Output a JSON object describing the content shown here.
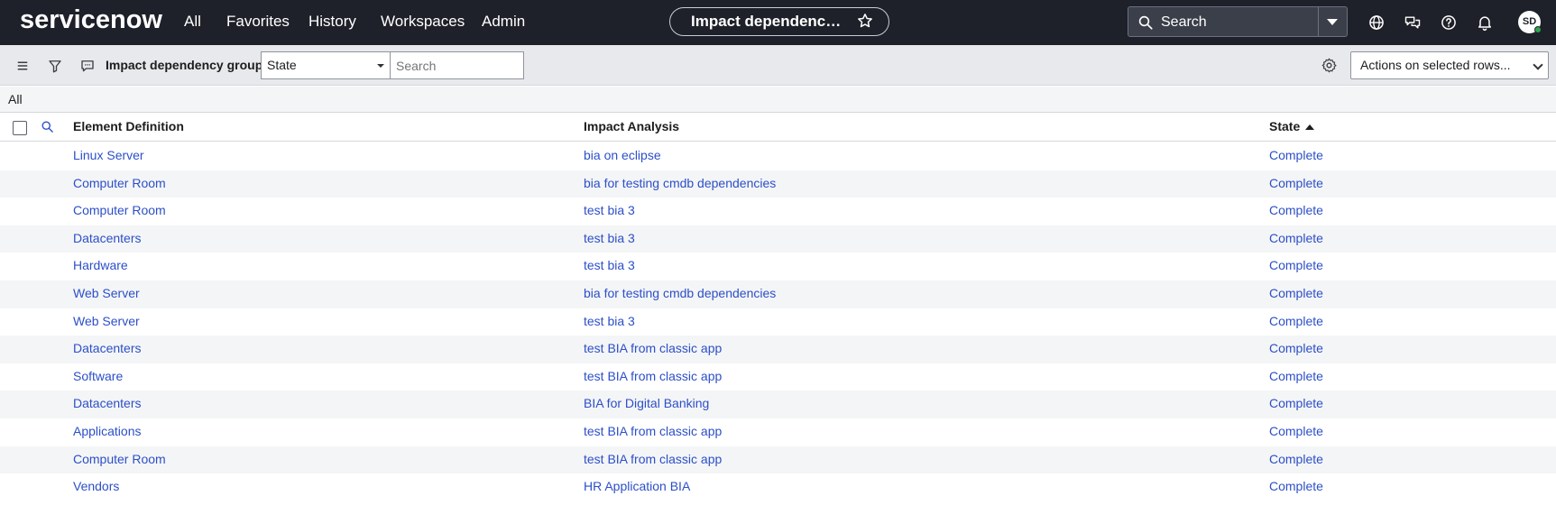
{
  "header": {
    "logo": "servicenow",
    "nav": [
      "All",
      "Favorites",
      "History",
      "Workspaces",
      "Admin"
    ],
    "context_title": "Impact dependency groups",
    "search_label": "Search",
    "avatar_initials": "SD"
  },
  "toolbar": {
    "title": "Impact dependency groups",
    "filter_field": "State",
    "search_placeholder": "Search",
    "actions_label": "Actions on selected rows..."
  },
  "breadcrumb": "All",
  "table": {
    "columns": [
      "Element Definition",
      "Impact Analysis",
      "State"
    ],
    "sort_column": "State",
    "rows": [
      {
        "element": "Linux Server",
        "analysis": "bia on eclipse",
        "state": "Complete"
      },
      {
        "element": "Computer Room",
        "analysis": "bia for testing cmdb dependencies",
        "state": "Complete"
      },
      {
        "element": "Computer Room",
        "analysis": "test bia 3",
        "state": "Complete"
      },
      {
        "element": "Datacenters",
        "analysis": "test bia 3",
        "state": "Complete"
      },
      {
        "element": "Hardware",
        "analysis": "test bia 3",
        "state": "Complete"
      },
      {
        "element": "Web Server",
        "analysis": "bia for testing cmdb dependencies",
        "state": "Complete"
      },
      {
        "element": "Web Server",
        "analysis": "test bia 3",
        "state": "Complete"
      },
      {
        "element": "Datacenters",
        "analysis": "test BIA from classic app",
        "state": "Complete"
      },
      {
        "element": "Software",
        "analysis": "test BIA from classic app",
        "state": "Complete"
      },
      {
        "element": "Datacenters",
        "analysis": "BIA for Digital Banking",
        "state": "Complete"
      },
      {
        "element": "Applications",
        "analysis": "test BIA from classic app",
        "state": "Complete"
      },
      {
        "element": "Computer Room",
        "analysis": "test BIA from classic app",
        "state": "Complete"
      },
      {
        "element": "Vendors",
        "analysis": "HR Application BIA",
        "state": "Complete"
      }
    ]
  },
  "icons": {
    "star": "star-outline-icon",
    "search": "magnifier-icon",
    "globe": "globe-icon",
    "chat": "chat-bubbles-icon",
    "help": "question-circle-icon",
    "bell": "bell-icon",
    "menu": "hamburger-icon",
    "filter": "funnel-icon",
    "comment": "comment-icon",
    "gear": "gear-icon"
  },
  "colors": {
    "topbar": "#1e2129",
    "link": "#2c4fc9",
    "toolbar": "#e8e9ec",
    "row_alt": "#f4f5f6",
    "presence": "#2ea44f"
  }
}
